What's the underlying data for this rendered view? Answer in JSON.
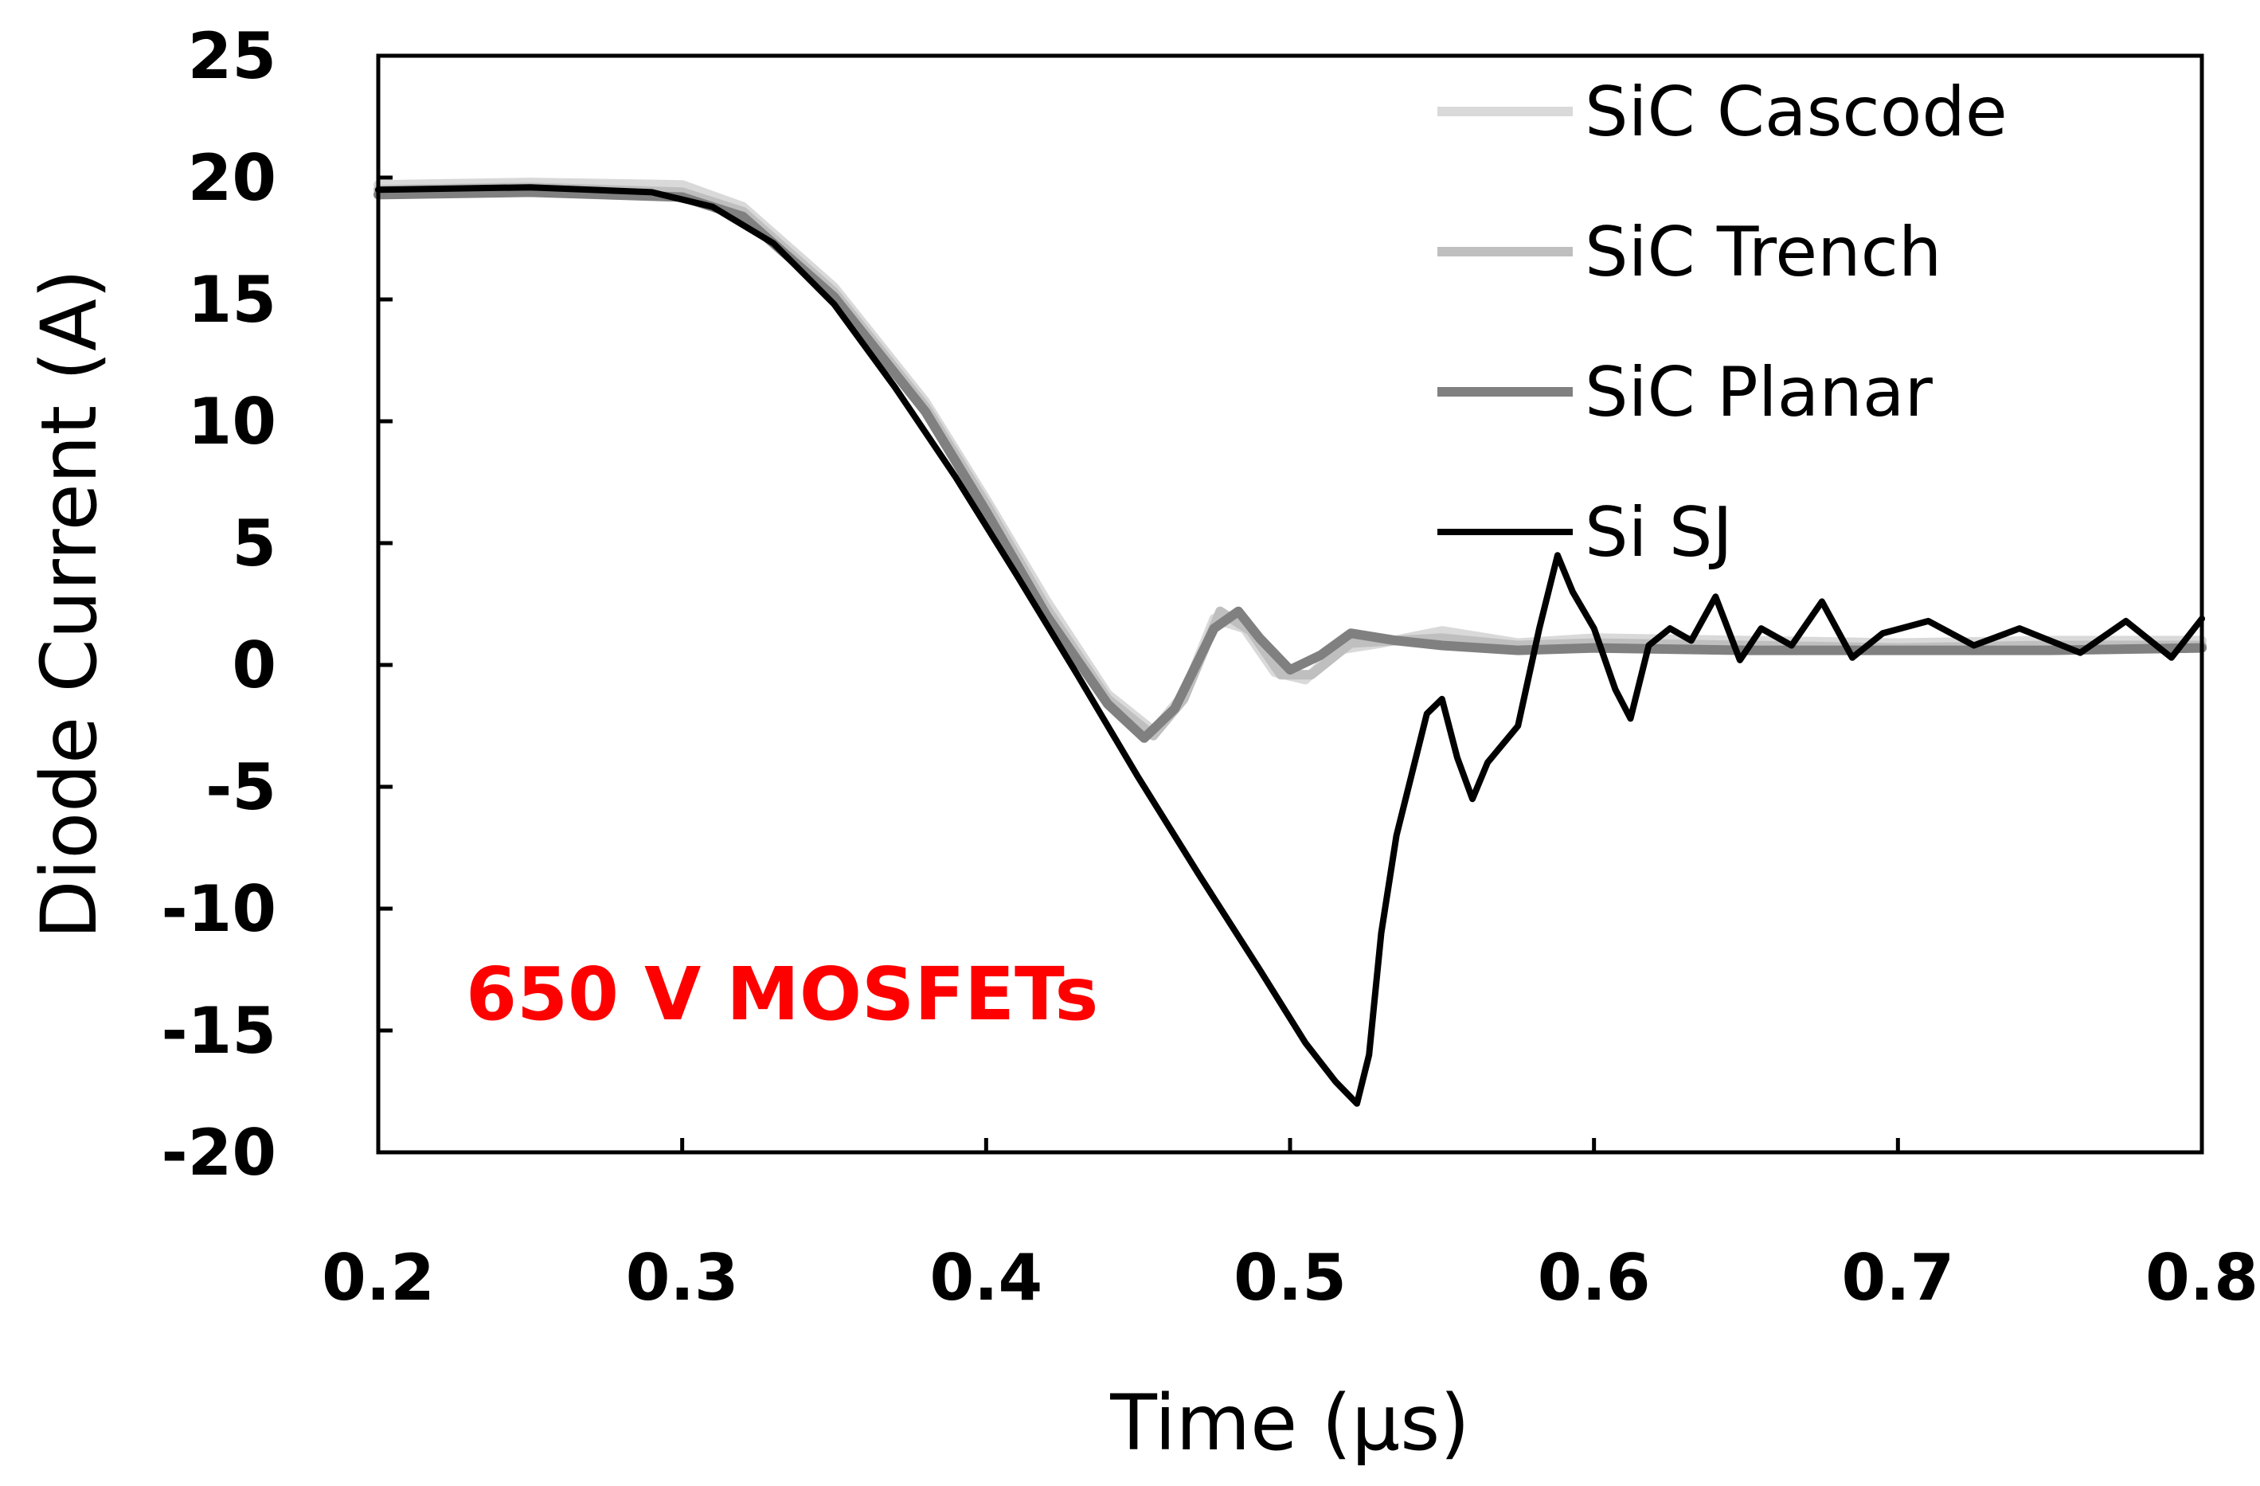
{
  "chart_data": {
    "type": "line",
    "title": "",
    "xlabel": "Time (µs)",
    "ylabel": "Diode Current (A)",
    "xlim": [
      0.2,
      0.8
    ],
    "ylim": [
      -20,
      25
    ],
    "xticks": [
      0.2,
      0.3,
      0.4,
      0.5,
      0.6,
      0.7,
      0.8
    ],
    "xtick_labels": [
      "0.2",
      "0.3",
      "0.4",
      "0.5",
      "0.6",
      "0.7",
      "0.8"
    ],
    "yticks": [
      -20,
      -15,
      -10,
      -5,
      0,
      5,
      10,
      15,
      20,
      25
    ],
    "ytick_labels": [
      "-20",
      "-15",
      "-10",
      "-5",
      "0",
      "5",
      "10",
      "15",
      "20",
      "25"
    ],
    "grid": false,
    "legend_position": "top-right",
    "annotation": {
      "text": "650 V MOSFETs",
      "color": "#ff0000"
    },
    "series": [
      {
        "name": "SiC Cascode",
        "color": "#d9d9d9",
        "x": [
          0.2,
          0.25,
          0.3,
          0.32,
          0.35,
          0.38,
          0.4,
          0.42,
          0.44,
          0.455,
          0.465,
          0.475,
          0.485,
          0.495,
          0.505,
          0.515,
          0.53,
          0.55,
          0.575,
          0.6,
          0.65,
          0.7,
          0.75,
          0.8
        ],
        "y": [
          19.7,
          19.8,
          19.7,
          18.8,
          15.5,
          10.8,
          6.8,
          2.6,
          -1.2,
          -2.7,
          -1.2,
          1.9,
          1.5,
          -0.3,
          -0.6,
          0.6,
          0.9,
          1.4,
          0.9,
          1.1,
          1.0,
          0.9,
          1.0,
          1.0
        ]
      },
      {
        "name": "SiC Trench",
        "color": "#bfbfbf",
        "x": [
          0.2,
          0.25,
          0.3,
          0.32,
          0.35,
          0.38,
          0.4,
          0.42,
          0.44,
          0.455,
          0.465,
          0.477,
          0.487,
          0.497,
          0.507,
          0.52,
          0.535,
          0.55,
          0.575,
          0.6,
          0.65,
          0.7,
          0.75,
          0.8
        ],
        "y": [
          19.5,
          19.6,
          19.4,
          18.6,
          15.3,
          10.6,
          6.6,
          2.3,
          -1.4,
          -2.9,
          -1.4,
          2.2,
          1.4,
          -0.4,
          -0.4,
          0.9,
          1.0,
          1.1,
          0.8,
          0.9,
          0.8,
          0.7,
          0.8,
          0.8
        ]
      },
      {
        "name": "SiC Planar",
        "color": "#808080",
        "x": [
          0.2,
          0.25,
          0.3,
          0.32,
          0.35,
          0.38,
          0.4,
          0.42,
          0.44,
          0.452,
          0.462,
          0.475,
          0.483,
          0.49,
          0.5,
          0.51,
          0.52,
          0.535,
          0.55,
          0.575,
          0.6,
          0.65,
          0.7,
          0.75,
          0.8
        ],
        "y": [
          19.3,
          19.4,
          19.2,
          18.4,
          15.1,
          10.4,
          6.3,
          2.0,
          -1.6,
          -3.0,
          -1.8,
          1.5,
          2.2,
          1.1,
          -0.2,
          0.4,
          1.3,
          1.0,
          0.8,
          0.6,
          0.7,
          0.6,
          0.6,
          0.6,
          0.7
        ]
      },
      {
        "name": "Si SJ",
        "color": "#000000",
        "x": [
          0.2,
          0.25,
          0.29,
          0.31,
          0.33,
          0.35,
          0.37,
          0.39,
          0.41,
          0.43,
          0.45,
          0.47,
          0.49,
          0.505,
          0.515,
          0.522,
          0.526,
          0.53,
          0.535,
          0.54,
          0.545,
          0.55,
          0.555,
          0.56,
          0.565,
          0.575,
          0.582,
          0.588,
          0.593,
          0.6,
          0.607,
          0.612,
          0.618,
          0.625,
          0.632,
          0.64,
          0.648,
          0.655,
          0.665,
          0.675,
          0.685,
          0.695,
          0.71,
          0.725,
          0.74,
          0.76,
          0.775,
          0.79,
          0.8
        ],
        "y": [
          19.5,
          19.6,
          19.4,
          18.8,
          17.3,
          14.8,
          11.4,
          7.7,
          3.7,
          -0.4,
          -4.6,
          -8.6,
          -12.5,
          -15.5,
          -17.1,
          -18.0,
          -16.0,
          -11.0,
          -7.0,
          -4.5,
          -2.0,
          -1.4,
          -3.8,
          -5.5,
          -4.0,
          -2.5,
          1.5,
          4.5,
          3.0,
          1.5,
          -1.0,
          -2.2,
          0.8,
          1.5,
          1.0,
          2.8,
          0.2,
          1.5,
          0.8,
          2.6,
          0.3,
          1.3,
          1.8,
          0.8,
          1.5,
          0.5,
          1.8,
          0.3,
          1.9
        ]
      }
    ]
  }
}
